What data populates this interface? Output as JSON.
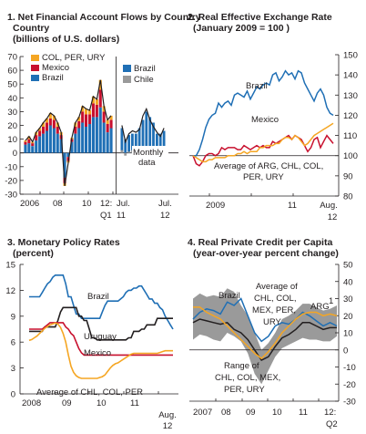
{
  "chart_data": [
    {
      "type": "bar",
      "title": "1. Net Financial Account Flows by Country",
      "subtitle": "(billions of U.S. dollars)",
      "y_ticks": [
        70,
        60,
        50,
        40,
        30,
        20,
        10,
        0,
        -10,
        -20,
        -30
      ],
      "ylim": [
        -30,
        70
      ],
      "x_tick_labels": [
        "2006",
        "08",
        "10",
        "12:",
        "Q1"
      ],
      "right_x_tick_labels": [
        "Jul.",
        "11",
        "Jul.",
        "12"
      ],
      "annotation": "Monthly data",
      "grid": false,
      "legend_position": "top",
      "legend_left": [
        "COL, PER, URY",
        "Mexico",
        "Brazil"
      ],
      "legend_right": [
        "Brazil",
        "Chile"
      ],
      "quarterly_categories": [
        "2006Q1",
        "2006Q2",
        "2006Q3",
        "2006Q4",
        "2007Q1",
        "2007Q2",
        "2007Q3",
        "2007Q4",
        "2008Q1",
        "2008Q2",
        "2008Q3",
        "2008Q4",
        "2009Q1",
        "2009Q2",
        "2009Q3",
        "2009Q4",
        "2010Q1",
        "2010Q2",
        "2010Q3",
        "2010Q4",
        "2011Q1",
        "2011Q2",
        "2011Q3",
        "2011Q4",
        "2012Q1"
      ],
      "series": [
        {
          "name": "Brazil",
          "color": "#1f6fb5",
          "values": [
            6,
            7,
            5,
            9,
            12,
            14,
            16,
            20,
            18,
            14,
            10,
            -18,
            -3,
            8,
            14,
            18,
            22,
            19,
            21,
            26,
            26,
            33,
            22,
            15,
            18
          ]
        },
        {
          "name": "Mexico",
          "color": "#c8102e",
          "values": [
            2,
            3,
            2,
            4,
            4,
            5,
            6,
            5,
            6,
            5,
            3,
            -4,
            -3,
            2,
            5,
            5,
            8,
            9,
            7,
            10,
            9,
            13,
            8,
            6,
            6
          ]
        },
        {
          "name": "COL, PER, URY",
          "color": "#f5a623",
          "values": [
            1,
            2,
            1,
            2,
            2,
            3,
            3,
            4,
            3,
            3,
            2,
            -2,
            -1,
            1,
            3,
            3,
            4,
            4,
            3,
            5,
            4,
            7,
            4,
            3,
            3
          ]
        }
      ],
      "monthly_categories": [
        "2011-07",
        "2011-08",
        "2011-09",
        "2011-10",
        "2011-11",
        "2011-12",
        "2012-01",
        "2012-02",
        "2012-03",
        "2012-04",
        "2012-05",
        "2012-06",
        "2012-07"
      ],
      "monthly_series": [
        {
          "name": "Brazil",
          "color": "#1f6fb5",
          "values": [
            18,
            10,
            13,
            14,
            14,
            18,
            24,
            30,
            26,
            22,
            14,
            14,
            16
          ]
        },
        {
          "name": "Chile",
          "color": "#9a9a9a",
          "values": [
            2,
            -2,
            1,
            2,
            1,
            -1,
            3,
            2,
            -2,
            -3,
            1,
            -2,
            2
          ]
        }
      ]
    },
    {
      "type": "line",
      "title": "2. Real Effective Exchange Rate",
      "subtitle": "(January 2009 = 100 )",
      "y_ticks": [
        150,
        140,
        130,
        120,
        110,
        100,
        90,
        80
      ],
      "ylim": [
        80,
        150
      ],
      "x_tick_labels": [
        "2009",
        "11",
        "Aug.",
        "12"
      ],
      "grid": false,
      "x": [
        0,
        1,
        2,
        3,
        4,
        5,
        6,
        7,
        8,
        9,
        10,
        11,
        12,
        13,
        14,
        15,
        16,
        17,
        18,
        19,
        20,
        21,
        22,
        23,
        24,
        25,
        26,
        27,
        28,
        29,
        30,
        31,
        32,
        33,
        34,
        35,
        36,
        37,
        38,
        39,
        40,
        41,
        42,
        43,
        44
      ],
      "series": [
        {
          "name": "Brazil",
          "color": "#1f6fb5",
          "label_at": 14,
          "values": [
            100,
            100,
            103,
            108,
            114,
            118,
            120,
            121,
            126,
            124,
            126,
            127,
            125,
            130,
            131,
            130,
            129,
            132,
            128,
            131,
            134,
            133,
            135,
            136,
            135,
            140,
            141,
            137,
            139,
            142,
            140,
            141,
            138,
            142,
            141,
            136,
            133,
            130,
            127,
            131,
            133,
            130,
            124,
            121,
            120
          ]
        },
        {
          "name": "Mexico",
          "color": "#c8102e",
          "label_at": 24,
          "values": [
            100,
            96,
            95,
            97,
            100,
            101,
            101,
            100,
            101,
            104,
            103,
            104,
            104,
            104,
            103,
            103,
            105,
            104,
            103,
            104,
            105,
            104,
            105,
            104,
            104,
            107,
            106,
            107,
            108,
            109,
            110,
            108,
            110,
            109,
            108,
            105,
            102,
            104,
            108,
            109,
            104,
            107,
            110,
            108,
            106
          ]
        },
        {
          "name": "Average of ARG, CHL, COL, PER, URY",
          "color": "#f5a623",
          "values": [
            100,
            99,
            98,
            97,
            97,
            98,
            98,
            99,
            99,
            99,
            99,
            100,
            100,
            100,
            101,
            101,
            102,
            101,
            102,
            102,
            102,
            104,
            104,
            105,
            105,
            105,
            106,
            106,
            108,
            109,
            109,
            108,
            110,
            109,
            107,
            105,
            106,
            108,
            110,
            111,
            112,
            113,
            114,
            115,
            116
          ]
        }
      ],
      "labels": [
        "Brazil",
        "Mexico",
        "Average of ARG, CHL, COL,",
        "PER, URY"
      ]
    },
    {
      "type": "line",
      "title": "3. Monetary Policy Rates",
      "subtitle": "(percent)",
      "y_ticks": [
        15,
        12,
        9,
        6,
        3,
        0
      ],
      "ylim": [
        0,
        15
      ],
      "x_tick_labels": [
        "2008",
        "09",
        "10",
        "11",
        "Aug.",
        "12"
      ],
      "grid": false,
      "x": [
        0,
        1,
        2,
        3,
        4,
        5,
        6,
        7,
        8,
        9,
        10,
        11,
        12,
        13,
        14,
        15,
        16,
        17,
        18,
        19,
        20,
        21,
        22,
        23,
        24,
        25,
        26,
        27,
        28,
        29,
        30,
        31,
        32,
        33,
        34,
        35,
        36,
        37,
        38,
        39,
        40,
        41,
        42,
        43,
        44,
        45,
        46,
        47,
        48,
        49,
        50,
        51,
        52,
        53,
        54,
        55
      ],
      "series": [
        {
          "name": "Brazil",
          "color": "#1f6fb5",
          "values": [
            11.25,
            11.25,
            11.25,
            11.25,
            11.25,
            11.75,
            12.25,
            12.75,
            13,
            13.5,
            13.75,
            13.75,
            13.75,
            13.75,
            12.75,
            11.25,
            11.25,
            10.25,
            9.25,
            9.25,
            8.75,
            8.75,
            8.75,
            8.75,
            8.75,
            8.75,
            8.75,
            8.75,
            9.5,
            10.25,
            10.75,
            10.75,
            10.75,
            10.75,
            10.75,
            11,
            11.25,
            11.75,
            12,
            12,
            12.25,
            12.25,
            12.5,
            12.5,
            12,
            11.5,
            11,
            11,
            10.5,
            10.5,
            10,
            9.75,
            9,
            8.5,
            8,
            7.5
          ]
        },
        {
          "name": "Uruguay",
          "color": "#231f20",
          "values": [
            7.25,
            7.25,
            7.25,
            7.25,
            7.25,
            7.25,
            7.75,
            7.75,
            7.75,
            7.75,
            7.75,
            8.5,
            9.5,
            10,
            10,
            10,
            10,
            10,
            10,
            9,
            9,
            8.5,
            8.5,
            7.5,
            6.5,
            6.5,
            6.25,
            6.25,
            6.25,
            6.25,
            6.25,
            6.25,
            6.25,
            6.25,
            6.25,
            6.25,
            6.25,
            6.25,
            6.5,
            6.5,
            7.25,
            7.25,
            7.25,
            7.5,
            7.5,
            8,
            8,
            8,
            8,
            8.75,
            8.75,
            8.75,
            8.75,
            8.75,
            8.75,
            8.75
          ]
        },
        {
          "name": "Mexico",
          "color": "#c8102e",
          "values": [
            7.5,
            7.5,
            7.5,
            7.5,
            7.5,
            7.5,
            7.75,
            8,
            8.25,
            8.25,
            8.25,
            8.25,
            8.25,
            8.25,
            7.75,
            7.5,
            7,
            6.75,
            6,
            5.25,
            4.75,
            4.5,
            4.5,
            4.5,
            4.5,
            4.5,
            4.5,
            4.5,
            4.5,
            4.5,
            4.5,
            4.5,
            4.5,
            4.5,
            4.5,
            4.5,
            4.5,
            4.5,
            4.5,
            4.5,
            4.5,
            4.5,
            4.5,
            4.5,
            4.5,
            4.5,
            4.5,
            4.5,
            4.5,
            4.5,
            4.5,
            4.5,
            4.5,
            4.5,
            4.5,
            4.5
          ]
        },
        {
          "name": "Average of CHL, COL, PER",
          "color": "#f5a623",
          "values": [
            6.2,
            6.3,
            6.5,
            6.7,
            7,
            7.3,
            7.6,
            7.8,
            8,
            8.1,
            8.2,
            8.1,
            7.7,
            7,
            6,
            4.5,
            3.2,
            2.5,
            2.1,
            1.9,
            1.8,
            1.8,
            1.8,
            1.8,
            1.8,
            1.8,
            1.8,
            1.9,
            2,
            2.2,
            2.6,
            3,
            3.3,
            3.5,
            3.6,
            3.8,
            4,
            4.2,
            4.4,
            4.6,
            4.7,
            4.7,
            4.7,
            4.7,
            4.7,
            4.7,
            4.7,
            4.7,
            4.7,
            4.7,
            4.8,
            4.9,
            5,
            5,
            5,
            5
          ]
        }
      ],
      "labels": [
        "Brazil",
        "Uruguay",
        "Mexico",
        "Average of CHL, COL, PER"
      ]
    },
    {
      "type": "line",
      "title": "4. Real Private Credit per Capita",
      "subtitle": "(year-over-year percent change)",
      "y_ticks": [
        50,
        40,
        30,
        20,
        10,
        0,
        -10,
        -20,
        -30
      ],
      "ylim": [
        -30,
        50
      ],
      "x_tick_labels": [
        "2007",
        "08",
        "09",
        "10",
        "11",
        "12:",
        "Q2"
      ],
      "grid": false,
      "x": [
        0,
        1,
        2,
        3,
        4,
        5,
        6,
        7,
        8,
        9,
        10,
        11,
        12,
        13,
        14,
        15,
        16,
        17,
        18,
        19,
        20,
        21
      ],
      "band": {
        "name": "Range of CHL, COL, MEX, PER, URY",
        "color": "#9a9a9a",
        "low": [
          6,
          9,
          8,
          6,
          5,
          10,
          8,
          5,
          -2,
          -14,
          -20,
          -12,
          -4,
          1,
          3,
          5,
          7,
          6,
          6,
          5,
          5,
          8
        ],
        "high": [
          30,
          33,
          31,
          32,
          31,
          36,
          34,
          26,
          20,
          10,
          0,
          4,
          10,
          18,
          20,
          23,
          27,
          27,
          25,
          23,
          24,
          26
        ]
      },
      "series": [
        {
          "name": "Brazil",
          "color": "#1f6fb5",
          "values": [
            18,
            22,
            24,
            23,
            21,
            28,
            26,
            30,
            20,
            10,
            5,
            8,
            14,
            16,
            15,
            18,
            22,
            20,
            17,
            14,
            16,
            14
          ]
        },
        {
          "name": "Average of CHL, COL, MEX, PER, URY",
          "color": "#231f20",
          "values": [
            16,
            18,
            17,
            16,
            15,
            16,
            12,
            10,
            6,
            0,
            -6,
            -4,
            2,
            7,
            9,
            12,
            16,
            16,
            14,
            12,
            13,
            13
          ]
        },
        {
          "name": "ARG",
          "color": "#f5a623",
          "values": [
            25,
            25,
            22,
            20,
            18,
            14,
            10,
            6,
            2,
            -2,
            -5,
            -1,
            4,
            10,
            14,
            18,
            21,
            22,
            22,
            20,
            21,
            20
          ]
        }
      ],
      "labels": [
        "Brazil",
        "Average of",
        "CHL, COL,",
        "MEX, PER,",
        "URY",
        "ARG",
        "1",
        "Range of",
        "CHL, COL, MEX,",
        "PER, URY"
      ]
    }
  ]
}
